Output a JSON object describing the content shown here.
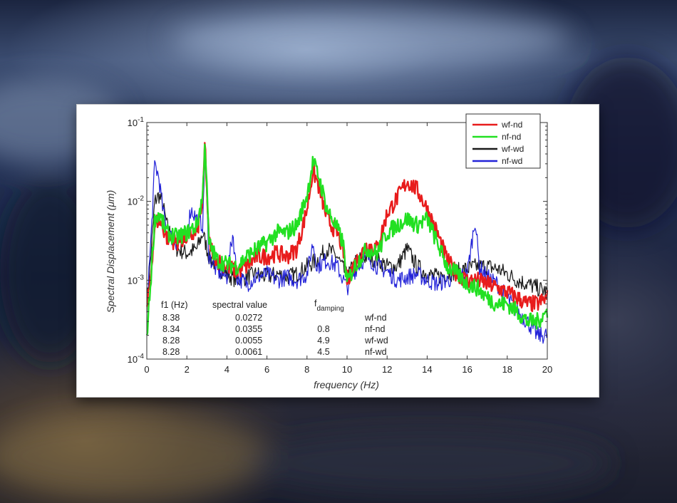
{
  "chart_data": {
    "type": "line",
    "xlabel": "frequency  (Hz)",
    "ylabel": "Spectral Displacement  (μm)",
    "xlim": [
      0,
      20
    ],
    "ylim": [
      0.0001,
      0.1
    ],
    "yscale": "log",
    "grid": false,
    "legend_position": "top-right",
    "x_ticks": [
      "0",
      "2",
      "4",
      "6",
      "8",
      "10",
      "12",
      "14",
      "16",
      "18",
      "20"
    ],
    "y_ticks": [
      {
        "base": "10",
        "exp": "-1",
        "value": 0.1
      },
      {
        "base": "10",
        "exp": "-2",
        "value": 0.01
      },
      {
        "base": "10",
        "exp": "-3",
        "value": 0.001
      },
      {
        "base": "10",
        "exp": "-4",
        "value": 0.0001
      }
    ],
    "series": [
      {
        "name": "wf-nd",
        "color": "#e81c1c",
        "points": [
          [
            0,
            0.0004
          ],
          [
            0.2,
            0.0012
          ],
          [
            0.4,
            0.005
          ],
          [
            0.6,
            0.006
          ],
          [
            1,
            0.0035
          ],
          [
            1.5,
            0.003
          ],
          [
            2,
            0.0035
          ],
          [
            2.5,
            0.004
          ],
          [
            2.8,
            0.01
          ],
          [
            2.9,
            0.06
          ],
          [
            3.1,
            0.003
          ],
          [
            3.5,
            0.0018
          ],
          [
            4,
            0.0015
          ],
          [
            4.5,
            0.0013
          ],
          [
            5,
            0.0015
          ],
          [
            5.5,
            0.002
          ],
          [
            6,
            0.002
          ],
          [
            6.5,
            0.0022
          ],
          [
            7,
            0.002
          ],
          [
            7.5,
            0.0025
          ],
          [
            8,
            0.008
          ],
          [
            8.3,
            0.025
          ],
          [
            8.6,
            0.015
          ],
          [
            9,
            0.006
          ],
          [
            9.5,
            0.004
          ],
          [
            9.8,
            0.0025
          ],
          [
            10,
            0.001
          ],
          [
            10.3,
            0.0015
          ],
          [
            11,
            0.0028
          ],
          [
            11.5,
            0.0025
          ],
          [
            12,
            0.007
          ],
          [
            12.5,
            0.011
          ],
          [
            13,
            0.018
          ],
          [
            13.5,
            0.014
          ],
          [
            14,
            0.008
          ],
          [
            14.5,
            0.004
          ],
          [
            15,
            0.0018
          ],
          [
            15.5,
            0.0012
          ],
          [
            16,
            0.001
          ],
          [
            16.5,
            0.001
          ],
          [
            17,
            0.0009
          ],
          [
            17.5,
            0.0008
          ],
          [
            18,
            0.0007
          ],
          [
            18.5,
            0.0006
          ],
          [
            19,
            0.0005
          ],
          [
            19.5,
            0.0005
          ],
          [
            20,
            0.0006
          ]
        ]
      },
      {
        "name": "nf-nd",
        "color": "#22e022",
        "points": [
          [
            0,
            0.0002
          ],
          [
            0.2,
            0.001
          ],
          [
            0.4,
            0.006
          ],
          [
            0.6,
            0.007
          ],
          [
            1,
            0.004
          ],
          [
            1.5,
            0.0035
          ],
          [
            2,
            0.004
          ],
          [
            2.5,
            0.005
          ],
          [
            2.8,
            0.012
          ],
          [
            2.9,
            0.065
          ],
          [
            3.1,
            0.003
          ],
          [
            3.5,
            0.0018
          ],
          [
            4,
            0.0016
          ],
          [
            4.5,
            0.0015
          ],
          [
            5,
            0.002
          ],
          [
            5.5,
            0.0025
          ],
          [
            6,
            0.003
          ],
          [
            6.5,
            0.004
          ],
          [
            7,
            0.004
          ],
          [
            7.5,
            0.005
          ],
          [
            8,
            0.012
          ],
          [
            8.3,
            0.032
          ],
          [
            8.6,
            0.02
          ],
          [
            9,
            0.008
          ],
          [
            9.5,
            0.0045
          ],
          [
            9.8,
            0.003
          ],
          [
            10,
            0.0009
          ],
          [
            10.3,
            0.0014
          ],
          [
            11,
            0.0025
          ],
          [
            11.5,
            0.0022
          ],
          [
            12,
            0.004
          ],
          [
            12.5,
            0.005
          ],
          [
            13,
            0.006
          ],
          [
            13.5,
            0.005
          ],
          [
            14,
            0.006
          ],
          [
            14.5,
            0.003
          ],
          [
            15,
            0.0015
          ],
          [
            15.5,
            0.0012
          ],
          [
            16,
            0.0009
          ],
          [
            16.5,
            0.0008
          ],
          [
            17,
            0.0006
          ],
          [
            17.5,
            0.0005
          ],
          [
            18,
            0.0005
          ],
          [
            18.5,
            0.0004
          ],
          [
            19,
            0.0003
          ],
          [
            19.5,
            0.0003
          ],
          [
            20,
            0.0004
          ]
        ]
      },
      {
        "name": "wf-wd",
        "color": "#1a1a1a",
        "points": [
          [
            0,
            0.0005
          ],
          [
            0.2,
            0.002
          ],
          [
            0.4,
            0.01
          ],
          [
            0.6,
            0.012
          ],
          [
            0.8,
            0.009
          ],
          [
            1,
            0.005
          ],
          [
            1.5,
            0.0025
          ],
          [
            2,
            0.0022
          ],
          [
            2.5,
            0.0025
          ],
          [
            2.8,
            0.004
          ],
          [
            3.1,
            0.002
          ],
          [
            3.5,
            0.0015
          ],
          [
            4,
            0.0012
          ],
          [
            4.5,
            0.001
          ],
          [
            5,
            0.0011
          ],
          [
            5.5,
            0.0012
          ],
          [
            6,
            0.0011
          ],
          [
            6.5,
            0.0012
          ],
          [
            7,
            0.0011
          ],
          [
            7.5,
            0.0012
          ],
          [
            8,
            0.0015
          ],
          [
            8.5,
            0.0018
          ],
          [
            9,
            0.0025
          ],
          [
            9.5,
            0.002
          ],
          [
            10,
            0.0011
          ],
          [
            10.5,
            0.0018
          ],
          [
            11,
            0.002
          ],
          [
            11.5,
            0.0018
          ],
          [
            12,
            0.0015
          ],
          [
            12.5,
            0.0015
          ],
          [
            13,
            0.0025
          ],
          [
            13.5,
            0.0015
          ],
          [
            14,
            0.0012
          ],
          [
            14.5,
            0.0011
          ],
          [
            15,
            0.0012
          ],
          [
            15.5,
            0.0013
          ],
          [
            16,
            0.0014
          ],
          [
            16.5,
            0.0015
          ],
          [
            17,
            0.0015
          ],
          [
            17.5,
            0.0014
          ],
          [
            18,
            0.0012
          ],
          [
            18.5,
            0.001
          ],
          [
            19,
            0.0009
          ],
          [
            19.5,
            0.0008
          ],
          [
            20,
            0.0007
          ]
        ]
      },
      {
        "name": "nf-wd",
        "color": "#2222d8",
        "points": [
          [
            0,
            0.0005
          ],
          [
            0.2,
            0.003
          ],
          [
            0.4,
            0.03
          ],
          [
            0.6,
            0.02
          ],
          [
            0.8,
            0.008
          ],
          [
            1,
            0.004
          ],
          [
            1.5,
            0.003
          ],
          [
            2,
            0.004
          ],
          [
            2.2,
            0.008
          ],
          [
            2.5,
            0.006
          ],
          [
            2.8,
            0.005
          ],
          [
            2.9,
            0.04
          ],
          [
            3.1,
            0.002
          ],
          [
            3.5,
            0.0013
          ],
          [
            4,
            0.0011
          ],
          [
            4.3,
            0.004
          ],
          [
            4.5,
            0.0011
          ],
          [
            5,
            0.0009
          ],
          [
            5.5,
            0.0011
          ],
          [
            6,
            0.0012
          ],
          [
            6.5,
            0.001
          ],
          [
            7,
            0.0011
          ],
          [
            7.5,
            0.001
          ],
          [
            8,
            0.0012
          ],
          [
            8.3,
            0.003
          ],
          [
            8.5,
            0.0015
          ],
          [
            9,
            0.0018
          ],
          [
            9.5,
            0.0015
          ],
          [
            10,
            0.0008
          ],
          [
            10.5,
            0.0015
          ],
          [
            11,
            0.002
          ],
          [
            11.5,
            0.0015
          ],
          [
            12,
            0.0013
          ],
          [
            12.5,
            0.001
          ],
          [
            13,
            0.0011
          ],
          [
            13.5,
            0.0012
          ],
          [
            14,
            0.001
          ],
          [
            14.5,
            0.0009
          ],
          [
            15,
            0.001
          ],
          [
            15.5,
            0.0011
          ],
          [
            16,
            0.0012
          ],
          [
            16.4,
            0.006
          ],
          [
            16.6,
            0.0015
          ],
          [
            17,
            0.0011
          ],
          [
            17.5,
            0.0009
          ],
          [
            18,
            0.0006
          ],
          [
            18.5,
            0.0004
          ],
          [
            19,
            0.0003
          ],
          [
            19.5,
            0.0002
          ],
          [
            20,
            0.0002
          ]
        ]
      }
    ],
    "table": {
      "headers": [
        "f1 (Hz)",
        "spectral value",
        "f",
        "damping"
      ],
      "rows": [
        [
          "8.38",
          "0.0272",
          "",
          "wf-nd"
        ],
        [
          "8.34",
          "0.0355",
          "0.8",
          "nf-nd"
        ],
        [
          "8.28",
          "0.0055",
          "4.9",
          "wf-wd"
        ],
        [
          "8.28",
          "0.0061",
          "4.5",
          "nf-wd"
        ]
      ]
    }
  }
}
